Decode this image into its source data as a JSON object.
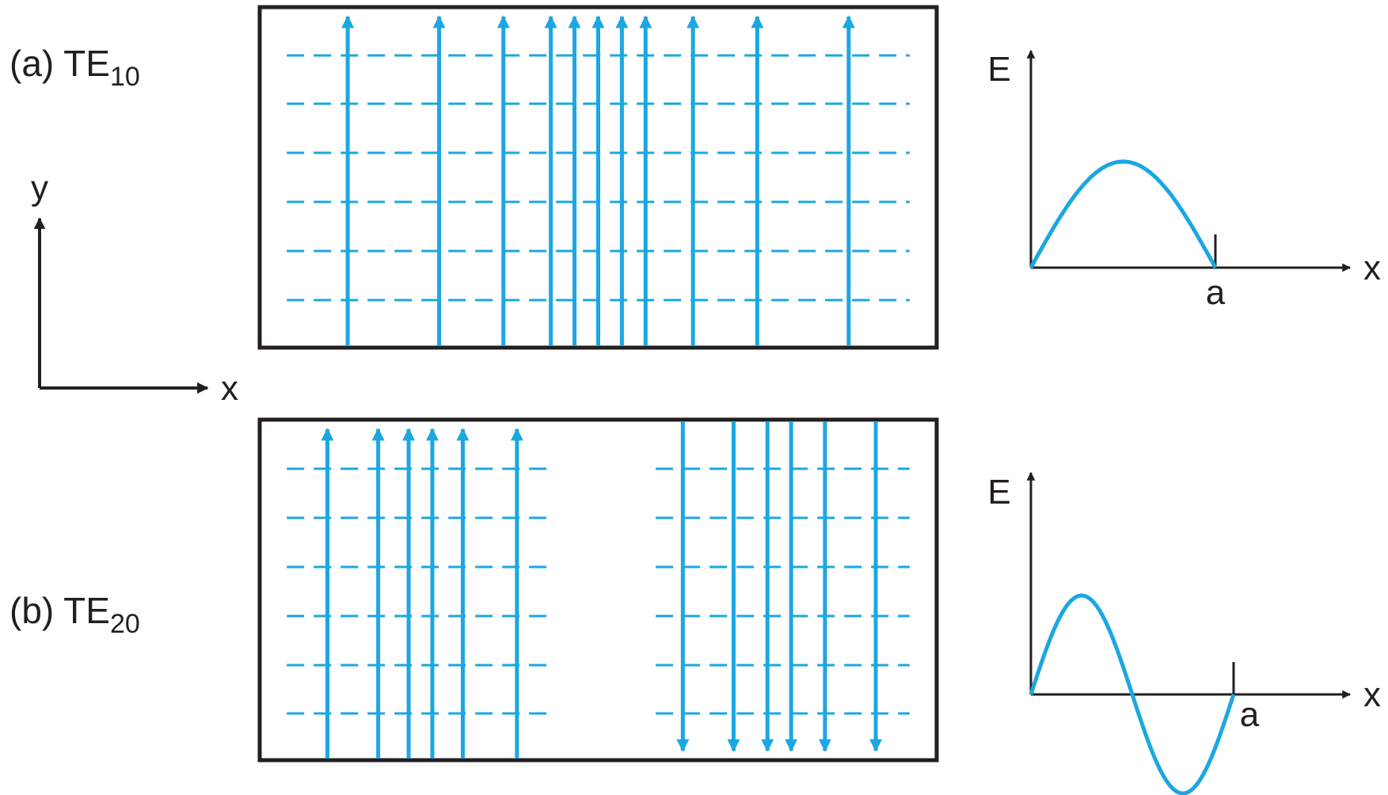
{
  "colors": {
    "field": "#1ba7e1",
    "ink": "#231f20",
    "background": "#ffffff"
  },
  "axes_key": {
    "y_label": "y",
    "x_label": "x"
  },
  "modes": [
    {
      "id": "te10",
      "prefix": "(a) TE",
      "subscript": "10",
      "field_lines": [
        {
          "x": 0.13,
          "dir": "up"
        },
        {
          "x": 0.265,
          "dir": "up"
        },
        {
          "x": 0.36,
          "dir": "up"
        },
        {
          "x": 0.43,
          "dir": "up"
        },
        {
          "x": 0.465,
          "dir": "up"
        },
        {
          "x": 0.5,
          "dir": "up"
        },
        {
          "x": 0.535,
          "dir": "up"
        },
        {
          "x": 0.57,
          "dir": "up"
        },
        {
          "x": 0.64,
          "dir": "up"
        },
        {
          "x": 0.735,
          "dir": "up"
        },
        {
          "x": 0.87,
          "dir": "up"
        }
      ],
      "dashed_regions": [
        [
          0.04,
          0.96
        ]
      ],
      "plot": {
        "y_label": "E",
        "x_label": "x",
        "mark_label": "a",
        "half_periods": 1
      }
    },
    {
      "id": "te20",
      "prefix": "(b) TE",
      "subscript": "20",
      "field_lines": [
        {
          "x": 0.1,
          "dir": "up"
        },
        {
          "x": 0.175,
          "dir": "up"
        },
        {
          "x": 0.22,
          "dir": "up"
        },
        {
          "x": 0.255,
          "dir": "up"
        },
        {
          "x": 0.3,
          "dir": "up"
        },
        {
          "x": 0.38,
          "dir": "up"
        },
        {
          "x": 0.625,
          "dir": "down"
        },
        {
          "x": 0.7,
          "dir": "down"
        },
        {
          "x": 0.75,
          "dir": "down"
        },
        {
          "x": 0.785,
          "dir": "down"
        },
        {
          "x": 0.835,
          "dir": "down"
        },
        {
          "x": 0.91,
          "dir": "down"
        }
      ],
      "dashed_regions": [
        [
          0.04,
          0.43
        ],
        [
          0.585,
          0.96
        ]
      ],
      "plot": {
        "y_label": "E",
        "x_label": "x",
        "mark_label": "a",
        "half_periods": 2
      }
    }
  ]
}
